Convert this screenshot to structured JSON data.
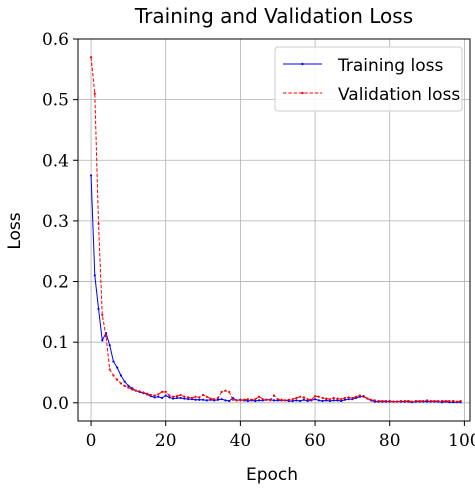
{
  "chart_data": {
    "type": "line",
    "title": "Training and Validation Loss",
    "xlabel": "Epoch",
    "ylabel": "Loss",
    "xlim": [
      -3.5,
      101.5
    ],
    "ylim": [
      -0.03,
      0.6
    ],
    "xticks": [
      0,
      20,
      40,
      60,
      80,
      100
    ],
    "yticks": [
      0.0,
      0.1,
      0.2,
      0.3,
      0.4,
      0.5,
      0.6
    ],
    "xtick_labels": [
      "0",
      "20",
      "40",
      "60",
      "80",
      "100"
    ],
    "ytick_labels": [
      "0.0",
      "0.1",
      "0.2",
      "0.3",
      "0.4",
      "0.5",
      "0.6"
    ],
    "grid": true,
    "legend_position": "top-right",
    "x": [
      0,
      1,
      2,
      3,
      4,
      5,
      6,
      7,
      8,
      9,
      10,
      11,
      12,
      13,
      14,
      15,
      16,
      17,
      18,
      19,
      20,
      21,
      22,
      23,
      24,
      25,
      26,
      27,
      28,
      29,
      30,
      31,
      32,
      33,
      34,
      35,
      36,
      37,
      38,
      39,
      40,
      41,
      42,
      43,
      44,
      45,
      46,
      47,
      48,
      49,
      50,
      51,
      52,
      53,
      54,
      55,
      56,
      57,
      58,
      59,
      60,
      61,
      62,
      63,
      64,
      65,
      66,
      67,
      68,
      69,
      70,
      71,
      72,
      73,
      74,
      75,
      76,
      77,
      78,
      79,
      80,
      81,
      82,
      83,
      84,
      85,
      86,
      87,
      88,
      89,
      90,
      91,
      92,
      93,
      94,
      95,
      96,
      97,
      98,
      99
    ],
    "series": [
      {
        "name": "Training loss",
        "color": "#0000ff",
        "linestyle": "solid",
        "values": [
          0.375,
          0.21,
          0.155,
          0.103,
          0.115,
          0.095,
          0.068,
          0.058,
          0.045,
          0.035,
          0.028,
          0.024,
          0.02,
          0.018,
          0.016,
          0.014,
          0.011,
          0.009,
          0.01,
          0.008,
          0.012,
          0.009,
          0.007,
          0.008,
          0.008,
          0.007,
          0.006,
          0.006,
          0.005,
          0.005,
          0.005,
          0.004,
          0.005,
          0.004,
          0.005,
          0.006,
          0.004,
          0.003,
          0.008,
          0.004,
          0.005,
          0.004,
          0.003,
          0.004,
          0.003,
          0.004,
          0.004,
          0.005,
          0.005,
          0.004,
          0.004,
          0.004,
          0.004,
          0.003,
          0.003,
          0.004,
          0.003,
          0.005,
          0.003,
          0.004,
          0.006,
          0.004,
          0.003,
          0.004,
          0.003,
          0.004,
          0.004,
          0.003,
          0.005,
          0.006,
          0.006,
          0.008,
          0.01,
          0.011,
          0.007,
          0.004,
          0.002,
          0.002,
          0.002,
          0.002,
          0.002,
          0.002,
          0.002,
          0.002,
          0.002,
          0.002,
          0.001,
          0.002,
          0.002,
          0.002,
          0.002,
          0.002,
          0.002,
          0.002,
          0.001,
          0.002,
          0.001,
          0.001,
          0.001,
          0.001
        ]
      },
      {
        "name": "Validation loss",
        "color": "#ff0000",
        "linestyle": "dashed",
        "values": [
          0.57,
          0.51,
          0.295,
          0.145,
          0.11,
          0.055,
          0.045,
          0.038,
          0.032,
          0.028,
          0.025,
          0.022,
          0.02,
          0.019,
          0.017,
          0.015,
          0.013,
          0.012,
          0.014,
          0.018,
          0.018,
          0.012,
          0.01,
          0.011,
          0.013,
          0.01,
          0.009,
          0.008,
          0.01,
          0.009,
          0.013,
          0.01,
          0.007,
          0.006,
          0.008,
          0.018,
          0.02,
          0.018,
          0.005,
          0.004,
          0.004,
          0.005,
          0.006,
          0.005,
          0.006,
          0.01,
          0.006,
          0.005,
          0.004,
          0.012,
          0.006,
          0.005,
          0.004,
          0.005,
          0.006,
          0.008,
          0.01,
          0.009,
          0.006,
          0.005,
          0.011,
          0.01,
          0.008,
          0.007,
          0.006,
          0.008,
          0.007,
          0.006,
          0.008,
          0.009,
          0.008,
          0.01,
          0.012,
          0.01,
          0.007,
          0.005,
          0.004,
          0.003,
          0.003,
          0.003,
          0.003,
          0.002,
          0.002,
          0.003,
          0.003,
          0.003,
          0.002,
          0.003,
          0.003,
          0.003,
          0.004,
          0.003,
          0.003,
          0.003,
          0.003,
          0.003,
          0.003,
          0.003,
          0.002,
          0.003
        ]
      }
    ]
  }
}
